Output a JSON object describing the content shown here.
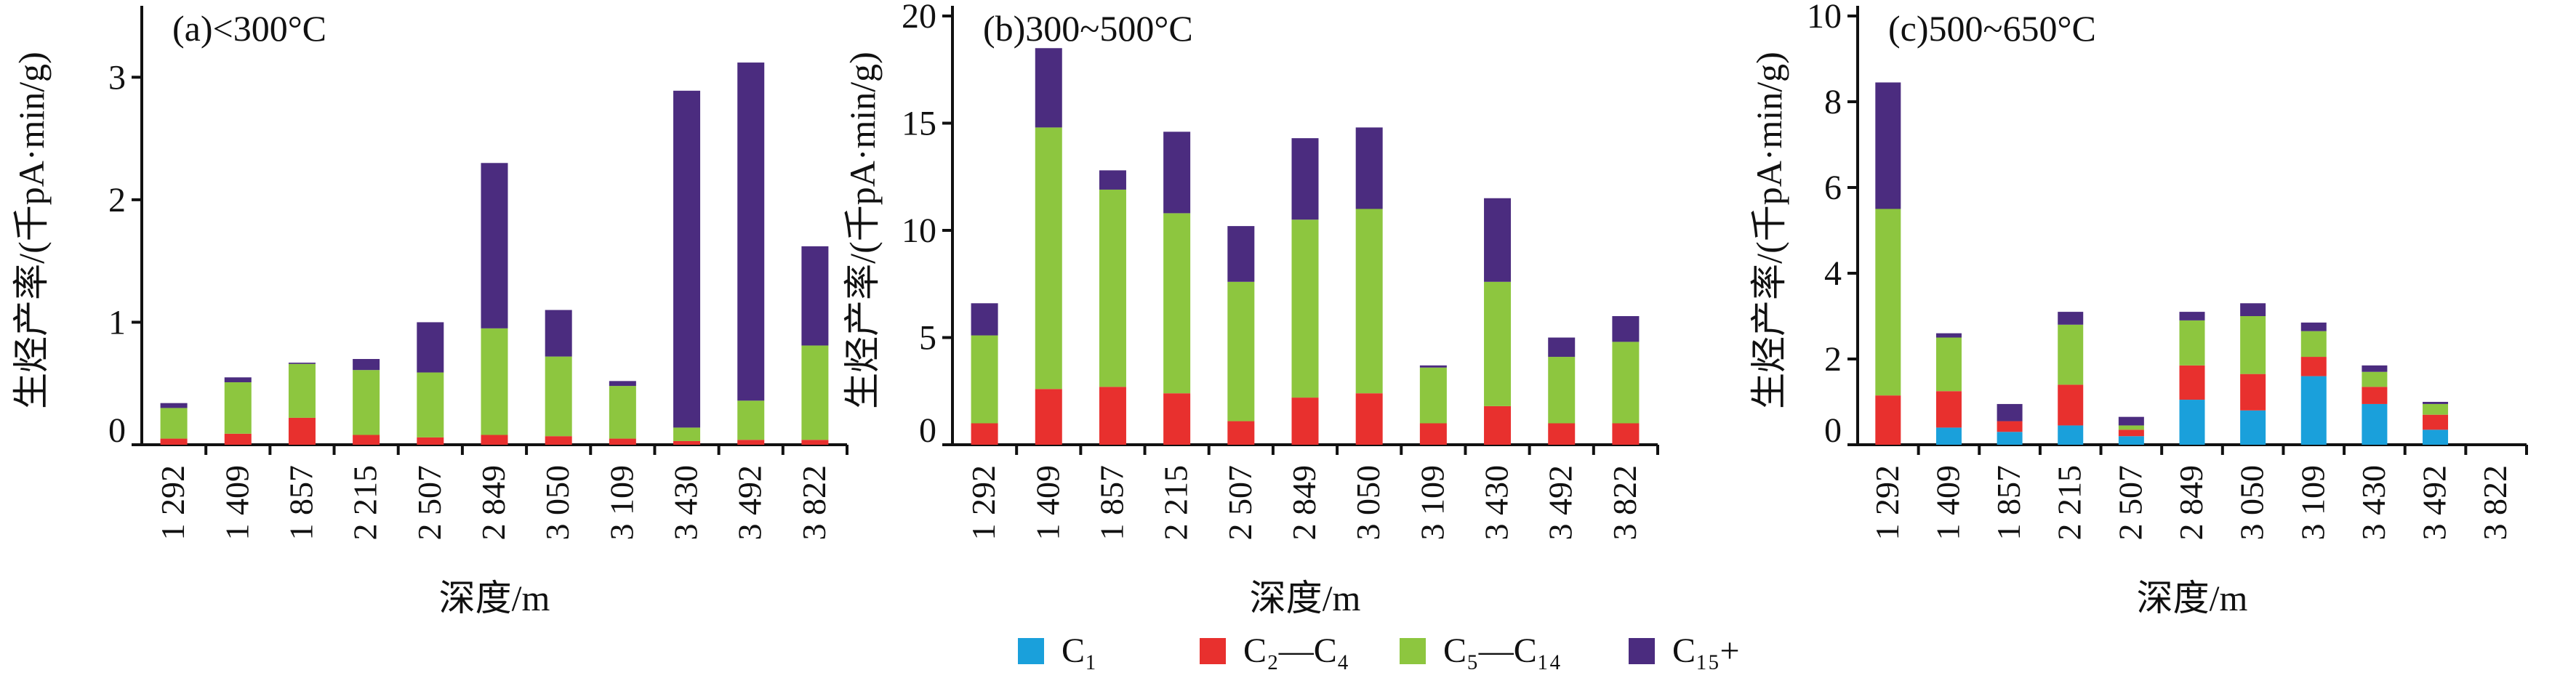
{
  "colors": {
    "C1": "#1aa0db",
    "C2C4": "#e8302e",
    "C5C14": "#8dc63f",
    "C15": "#4b2c7f",
    "axis": "#111111"
  },
  "legend": [
    {
      "key": "C1",
      "label": "C₁",
      "color": "#1aa0db"
    },
    {
      "key": "C2C4",
      "label": "C₂—C₄",
      "color": "#e8302e"
    },
    {
      "key": "C5C14",
      "label": "C₅—C₁₄",
      "color": "#8dc63f"
    },
    {
      "key": "C15",
      "label": "C₁₅+",
      "color": "#4b2c7f"
    }
  ],
  "chart_data": [
    {
      "type": "bar",
      "stacked": true,
      "title": "(a)<300°C",
      "xlabel": "深度/m",
      "ylabel": "生烃产率/(千pA·min/g)",
      "ylim": [
        0,
        3.5
      ],
      "yticks": [
        0,
        1,
        2,
        3
      ],
      "categories": [
        "1 292",
        "1 409",
        "1 857",
        "2 215",
        "2 507",
        "2 849",
        "3 050",
        "3 109",
        "3 430",
        "3 492",
        "3 822"
      ],
      "series": [
        {
          "name": "C₁",
          "values": [
            0,
            0,
            0,
            0,
            0,
            0,
            0,
            0,
            0,
            0,
            0
          ]
        },
        {
          "name": "C₂—C₄",
          "values": [
            0.05,
            0.09,
            0.22,
            0.08,
            0.06,
            0.08,
            0.07,
            0.05,
            0.03,
            0.04,
            0.04
          ]
        },
        {
          "name": "C₅—C₁₄",
          "values": [
            0.25,
            0.42,
            0.44,
            0.53,
            0.53,
            0.87,
            0.65,
            0.43,
            0.11,
            0.32,
            0.77
          ]
        },
        {
          "name": "C₁₅+",
          "values": [
            0.04,
            0.04,
            0.01,
            0.09,
            0.41,
            1.35,
            0.38,
            0.04,
            2.75,
            2.76,
            0.81
          ]
        }
      ]
    },
    {
      "type": "bar",
      "stacked": true,
      "title": "(b)300~500°C",
      "xlabel": "深度/m",
      "ylabel": "生烃产率/(千pA·min/g)",
      "ylim": [
        0,
        20
      ],
      "yticks": [
        0,
        5,
        10,
        15,
        20
      ],
      "categories": [
        "1 292",
        "1 409",
        "1 857",
        "2 215",
        "2 507",
        "2 849",
        "3 050",
        "3 109",
        "3 430",
        "3 492",
        "3 822"
      ],
      "series": [
        {
          "name": "C₁",
          "values": [
            0,
            0,
            0,
            0,
            0,
            0,
            0,
            0,
            0,
            0,
            0
          ]
        },
        {
          "name": "C₂—C₄",
          "values": [
            1.0,
            2.6,
            2.7,
            2.4,
            1.1,
            2.2,
            2.4,
            1.0,
            1.8,
            1.0,
            1.0
          ]
        },
        {
          "name": "C₅—C₁₄",
          "values": [
            4.1,
            12.2,
            9.2,
            8.4,
            6.5,
            8.3,
            8.6,
            2.6,
            5.8,
            3.1,
            3.8
          ]
        },
        {
          "name": "C₁₅+",
          "values": [
            1.5,
            3.7,
            0.9,
            3.8,
            2.6,
            3.8,
            3.8,
            0.1,
            3.9,
            0.9,
            1.2
          ]
        }
      ]
    },
    {
      "type": "bar",
      "stacked": true,
      "title": "(c)500~650°C",
      "xlabel": "深度/m",
      "ylabel": "生烃产率/(千pA·min/g)",
      "ylim": [
        0,
        10
      ],
      "yticks": [
        0,
        2,
        4,
        6,
        8,
        10
      ],
      "categories": [
        "1 292",
        "1 409",
        "1 857",
        "2 215",
        "2 507",
        "2 849",
        "3 050",
        "3 109",
        "3 430",
        "3 492",
        "3 822"
      ],
      "series": [
        {
          "name": "C₁",
          "values": [
            0,
            0.4,
            0.3,
            0.45,
            0.2,
            1.05,
            0.8,
            1.6,
            0.95,
            0.35,
            0
          ]
        },
        {
          "name": "C₂—C₄",
          "values": [
            1.15,
            0.85,
            0.25,
            0.95,
            0.15,
            0.8,
            0.85,
            0.45,
            0.4,
            0.35,
            0
          ]
        },
        {
          "name": "C₅—C₁₄",
          "values": [
            4.35,
            1.25,
            0.0,
            1.4,
            0.1,
            1.05,
            1.35,
            0.6,
            0.35,
            0.25,
            0
          ]
        },
        {
          "name": "C₁₅+",
          "values": [
            2.95,
            0.1,
            0.4,
            0.3,
            0.2,
            0.2,
            0.3,
            0.2,
            0.15,
            0.05,
            0
          ]
        }
      ]
    }
  ]
}
